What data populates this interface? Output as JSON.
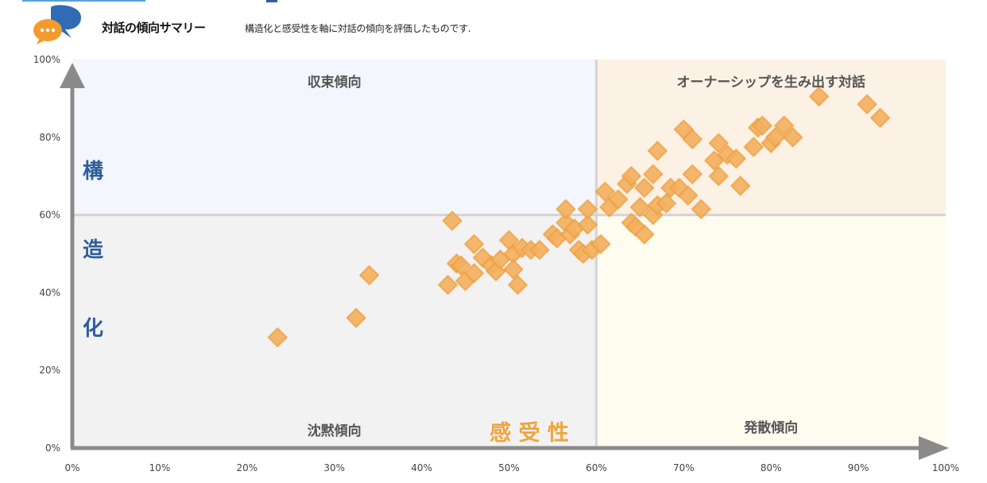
{
  "header": {
    "title": "対話の傾向サマリー",
    "description": "構造化と感受性を軸に対話の傾向を評価したものです."
  },
  "colors": {
    "point_fill": "#f3b15f",
    "point_stroke": "#eb9d3c",
    "axis_y_label_color": "#2e5d9c",
    "axis_x_label_color": "#f2a33c",
    "quadrant_top_left": "#f3f6fc",
    "quadrant_top_right": "#fcf1e5",
    "quadrant_bottom_left": "#f2f2f2",
    "quadrant_bottom_right": "#fefbef"
  },
  "chart_data": {
    "type": "scatter",
    "xlabel": "感 受 性",
    "ylabel_chars": [
      "構",
      "造",
      "化"
    ],
    "xlim": [
      0,
      100
    ],
    "ylim": [
      0,
      100
    ],
    "x_tick_labels": [
      "0%",
      "10%",
      "20%",
      "30%",
      "40%",
      "50%",
      "60%",
      "70%",
      "80%",
      "90%",
      "100%"
    ],
    "y_tick_labels": [
      "0%",
      "20%",
      "40%",
      "60%",
      "80%",
      "100%"
    ],
    "dividers": {
      "x": 60,
      "y": 60
    },
    "quadrant_labels": {
      "top_left": "収束傾向",
      "top_right": "オーナーシップを生み出す対話",
      "bottom_left": "沈黙傾向",
      "bottom_right": "発散傾向"
    },
    "points": [
      [
        23.5,
        28.5
      ],
      [
        32.5,
        33.5
      ],
      [
        34,
        44.5
      ],
      [
        43,
        42
      ],
      [
        43.5,
        58.5
      ],
      [
        44,
        47.5
      ],
      [
        44.5,
        47
      ],
      [
        45,
        43
      ],
      [
        46,
        45
      ],
      [
        46,
        52.5
      ],
      [
        47,
        49
      ],
      [
        48,
        47
      ],
      [
        48.5,
        45.5
      ],
      [
        49,
        48.5
      ],
      [
        50,
        53.5
      ],
      [
        50.5,
        50
      ],
      [
        50.5,
        46
      ],
      [
        51,
        42
      ],
      [
        51.5,
        51.5
      ],
      [
        52.5,
        51
      ],
      [
        53.5,
        51
      ],
      [
        55,
        55
      ],
      [
        55.5,
        54
      ],
      [
        56.5,
        58
      ],
      [
        56.5,
        61.5
      ],
      [
        57,
        55
      ],
      [
        57.5,
        56.5
      ],
      [
        58,
        51
      ],
      [
        58.5,
        50
      ],
      [
        59,
        57.5
      ],
      [
        59,
        61.5
      ],
      [
        59.5,
        51
      ],
      [
        60.5,
        52.5
      ],
      [
        61,
        66
      ],
      [
        61.5,
        62
      ],
      [
        62.5,
        64
      ],
      [
        63.5,
        68
      ],
      [
        64,
        70
      ],
      [
        64,
        58
      ],
      [
        64.5,
        57
      ],
      [
        65,
        62
      ],
      [
        65.5,
        67
      ],
      [
        65.5,
        55
      ],
      [
        66.5,
        60
      ],
      [
        66.5,
        70.5
      ],
      [
        67,
        62.5
      ],
      [
        67,
        76.5
      ],
      [
        68,
        63
      ],
      [
        68.5,
        67
      ],
      [
        69.5,
        67
      ],
      [
        70,
        82
      ],
      [
        70.5,
        65
      ],
      [
        71,
        79.5
      ],
      [
        71,
        70.5
      ],
      [
        72,
        61.5
      ],
      [
        73.5,
        74
      ],
      [
        74,
        70
      ],
      [
        74,
        78.5
      ],
      [
        75,
        75.5
      ],
      [
        76,
        74.5
      ],
      [
        76.5,
        67.5
      ],
      [
        78,
        77.5
      ],
      [
        78.5,
        82.5
      ],
      [
        79,
        83
      ],
      [
        80,
        78.5
      ],
      [
        80.5,
        80
      ],
      [
        81.5,
        83
      ],
      [
        82.5,
        80
      ],
      [
        85.5,
        90.5
      ],
      [
        91,
        88.5
      ],
      [
        92.5,
        85
      ]
    ]
  }
}
